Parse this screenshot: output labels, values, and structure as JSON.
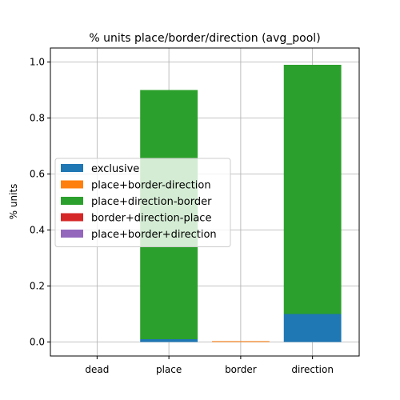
{
  "chart_data": {
    "type": "bar",
    "stacked": true,
    "title": "% units place/border/direction (avg_pool)",
    "xlabel": "",
    "ylabel": "% units",
    "categories": [
      "dead",
      "place",
      "border",
      "direction"
    ],
    "ylim": [
      -0.05,
      1.05
    ],
    "yticks": [
      0.0,
      0.2,
      0.4,
      0.6,
      0.8,
      1.0
    ],
    "ytick_labels": [
      "0.0",
      "0.2",
      "0.4",
      "0.6",
      "0.8",
      "1.0"
    ],
    "grid": true,
    "legend_position": "center-left",
    "series": [
      {
        "name": "exclusive",
        "color": "#1f77b4",
        "values": [
          0.0,
          0.01,
          0.0,
          0.1
        ]
      },
      {
        "name": "place+border-direction",
        "color": "#ff7f0e",
        "values": [
          0.0,
          0.0,
          0.003,
          0.0
        ]
      },
      {
        "name": "place+direction-border",
        "color": "#2ca02c",
        "values": [
          0.0,
          0.89,
          0.0,
          0.89
        ]
      },
      {
        "name": "border+direction-place",
        "color": "#d62728",
        "values": [
          0.0,
          0.0,
          0.0,
          0.0
        ]
      },
      {
        "name": "place+border+direction",
        "color": "#9467bd",
        "values": [
          0.0,
          0.0,
          0.0,
          0.0
        ]
      }
    ]
  }
}
